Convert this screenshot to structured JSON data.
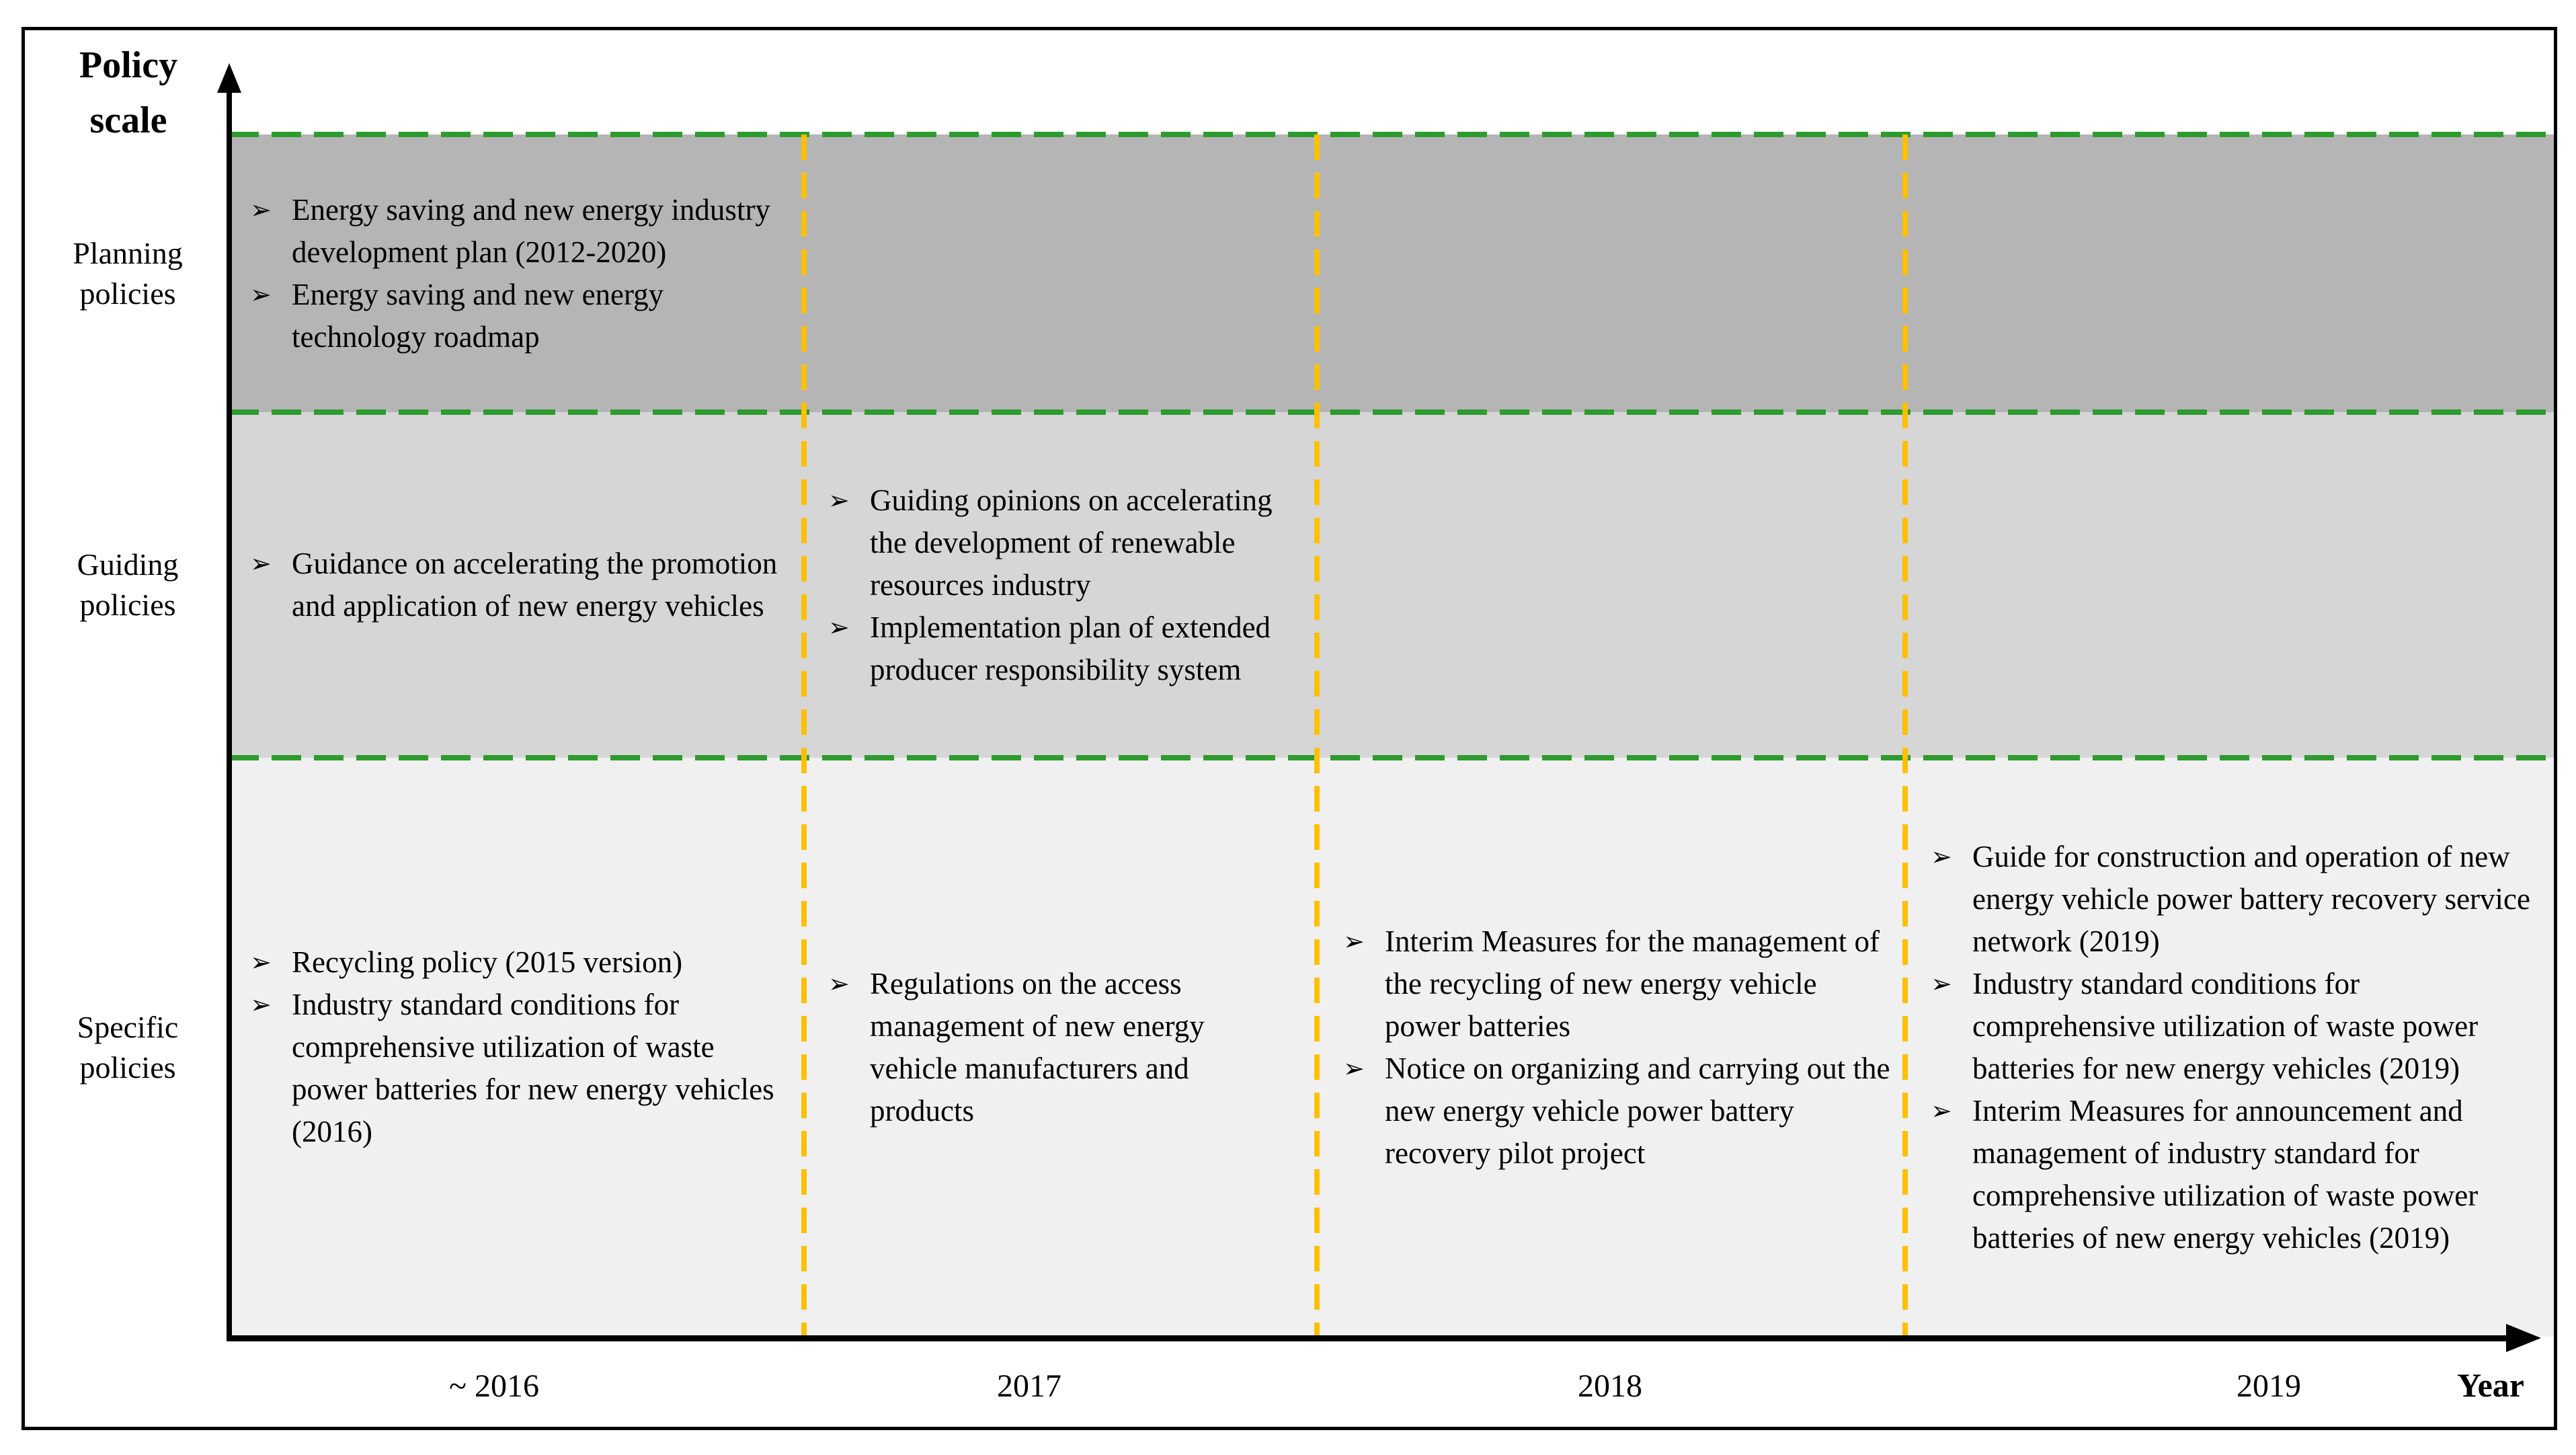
{
  "bullet": "➢",
  "colors": {
    "planning_band": "#b5b5b5",
    "guiding_band": "#d6d6d6",
    "specific_band": "#f0f0f0",
    "green_divider": "#2e9b2e",
    "gold_divider": "#ffc000",
    "axis": "#000000",
    "border": "#000000",
    "text": "#000000"
  },
  "axes": {
    "y_label_line1": "Policy",
    "y_label_line2": "scale",
    "x_label": "Year",
    "ticks": [
      "~ 2016",
      "2017",
      "2018",
      "2019"
    ]
  },
  "rows": [
    {
      "label_line1": "Planning",
      "label_line2": "policies",
      "cells": [
        {
          "column": "~ 2016",
          "items": [
            "Energy saving and new energy industry development plan (2012-2020)",
            "Energy saving and new energy technology roadmap"
          ]
        }
      ]
    },
    {
      "label_line1": "Guiding",
      "label_line2": "policies",
      "cells": [
        {
          "column": "~ 2016",
          "items": [
            "Guidance on accelerating the promotion and application of new energy vehicles"
          ]
        },
        {
          "column": "2017",
          "items": [
            "Guiding opinions on accelerating the development of renewable resources industry",
            "Implementation plan of extended producer responsibility system"
          ]
        }
      ]
    },
    {
      "label_line1": "Specific",
      "label_line2": "policies",
      "cells": [
        {
          "column": "~ 2016",
          "items": [
            "Recycling policy (2015 version)",
            "Industry standard conditions for comprehensive utilization of waste power batteries for new energy vehicles (2016)"
          ]
        },
        {
          "column": "2017",
          "items": [
            "Regulations on the access management of new energy vehicle manufacturers and products"
          ]
        },
        {
          "column": "2018",
          "items": [
            "Interim Measures for the management of the recycling of new energy vehicle power batteries",
            "Notice on organizing and carrying out the new energy vehicle power battery recovery pilot project"
          ]
        },
        {
          "column": "2019",
          "items": [
            "Guide for construction and operation of new energy vehicle power battery recovery service network (2019)",
            "Industry standard conditions for comprehensive utilization of waste power batteries for new energy vehicles (2019)",
            "Interim Measures for announcement and management of industry standard for comprehensive utilization of waste power batteries of new energy vehicles (2019)"
          ]
        }
      ]
    }
  ]
}
